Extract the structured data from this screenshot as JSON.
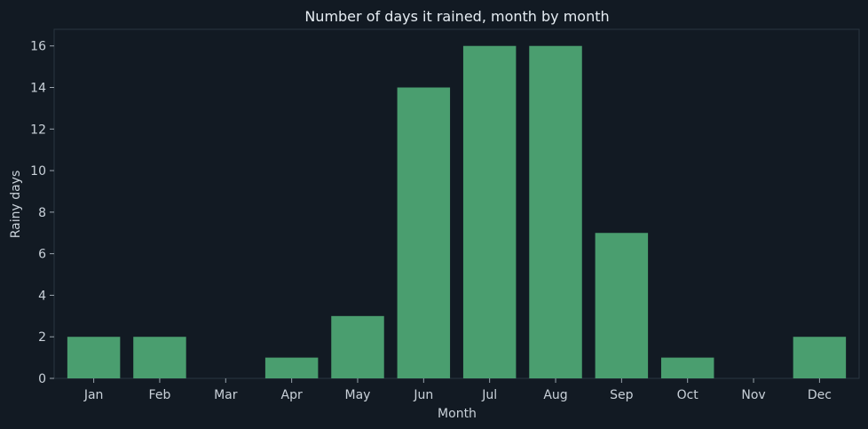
{
  "chart_data": {
    "type": "bar",
    "title": "Number of days it rained, month by month",
    "xlabel": "Month",
    "ylabel": "Rainy days",
    "categories": [
      "Jan",
      "Feb",
      "Mar",
      "Apr",
      "May",
      "Jun",
      "Jul",
      "Aug",
      "Sep",
      "Oct",
      "Nov",
      "Dec"
    ],
    "values": [
      2,
      2,
      0,
      1,
      3,
      14,
      16,
      16,
      7,
      1,
      0,
      2
    ],
    "ylim": [
      0,
      16.8
    ],
    "yticks": [
      0,
      2,
      4,
      6,
      8,
      10,
      12,
      14,
      16
    ],
    "grid": false,
    "bar_color": "#4a9e6f",
    "background_color": "#121a23"
  }
}
